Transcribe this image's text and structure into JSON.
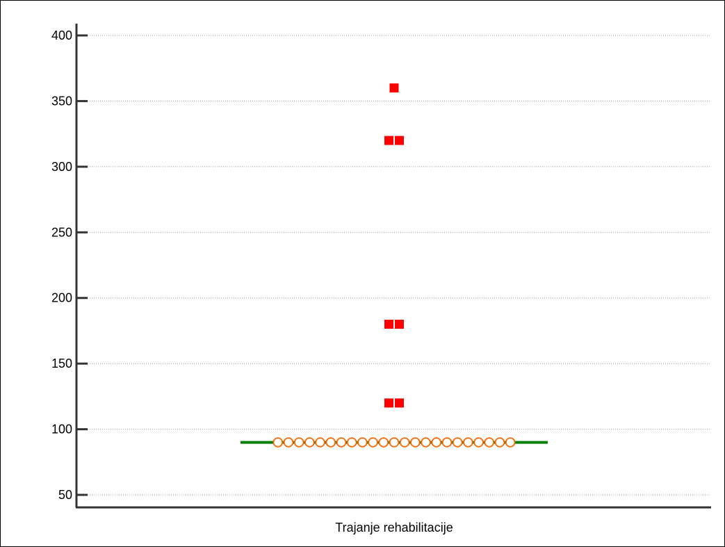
{
  "chart_data": {
    "type": "scatter",
    "xlabel": "Trajanje rehabilitacije",
    "ylabel": "",
    "ylim": [
      40,
      410
    ],
    "yticks": [
      50,
      100,
      150,
      200,
      250,
      300,
      350,
      400
    ],
    "grid": true,
    "grid_style": "dotted",
    "median": 90,
    "colors": {
      "outlier": "#ff0000",
      "point_stroke": "#ff6600",
      "median": "#008000",
      "grid": "#999999",
      "axis": "#333333"
    },
    "series": [
      {
        "marker": "circle",
        "values": [
          90,
          90,
          90,
          90,
          90,
          90,
          90,
          90,
          90,
          90,
          90,
          90,
          90,
          90,
          90,
          90,
          90,
          90,
          90,
          90,
          90,
          90,
          90
        ]
      },
      {
        "marker": "square",
        "values": [
          360,
          320,
          320,
          180,
          180,
          120,
          120
        ]
      }
    ]
  }
}
